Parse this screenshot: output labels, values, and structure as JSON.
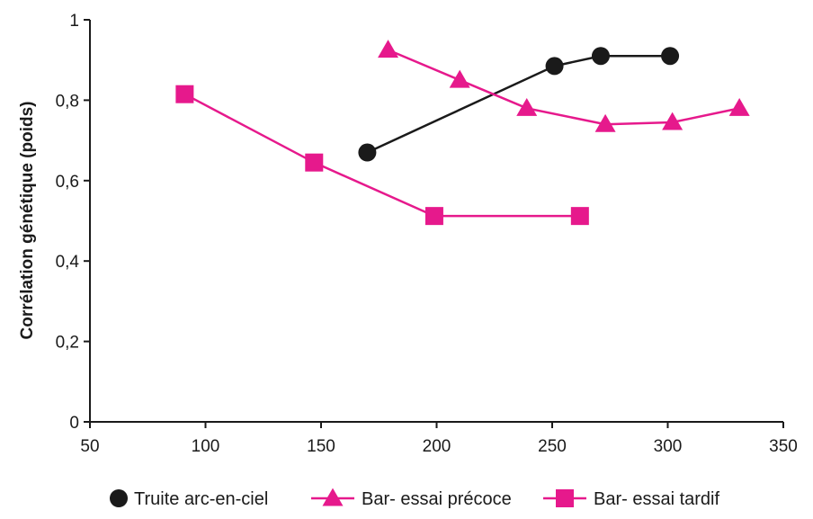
{
  "chart_data": {
    "type": "line",
    "title": "",
    "xlabel": "",
    "ylabel": "Corrélation génétique (poids)",
    "xlim": [
      50,
      350
    ],
    "ylim": [
      0,
      1
    ],
    "x_ticks": [
      50,
      100,
      150,
      200,
      250,
      300,
      350
    ],
    "x_tick_labels": [
      "50",
      "100",
      "150",
      "200",
      "250",
      "300",
      "350"
    ],
    "y_ticks": [
      0,
      0.2,
      0.4,
      0.6,
      0.8,
      1
    ],
    "y_tick_labels": [
      "0",
      "0,2",
      "0,4",
      "0,6",
      "0,8",
      "1"
    ],
    "grid": false,
    "legend_position": "bottom",
    "series": [
      {
        "name": "Truite arc-en-ciel",
        "marker": "circle",
        "color": "#1a1a1a",
        "x": [
          170,
          251,
          271,
          301
        ],
        "y": [
          0.67,
          0.885,
          0.91,
          0.91
        ]
      },
      {
        "name": "Bar- essai précoce",
        "marker": "triangle",
        "color": "#e6198c",
        "x": [
          179,
          210,
          239,
          273,
          302,
          331
        ],
        "y": [
          0.925,
          0.85,
          0.78,
          0.74,
          0.745,
          0.78
        ]
      },
      {
        "name": "Bar- essai tardif",
        "marker": "square",
        "color": "#e6198c",
        "x": [
          91,
          147,
          199,
          262
        ],
        "y": [
          0.815,
          0.645,
          0.512,
          0.512
        ]
      }
    ]
  }
}
